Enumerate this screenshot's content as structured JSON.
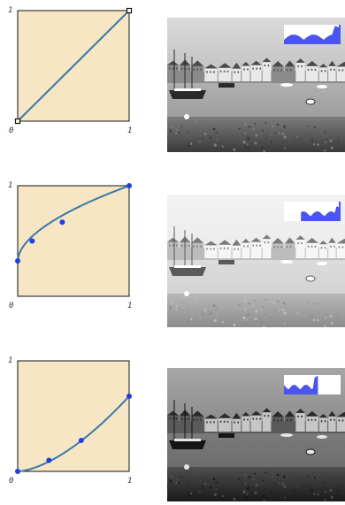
{
  "colors": {
    "plot_bg": "#f7e6c4",
    "curve": "#3a78a8",
    "point": "#1f3fe0",
    "histogram": "#4a55f0"
  },
  "chart_data": [
    {
      "type": "line",
      "title": "",
      "xlim": [
        0,
        1
      ],
      "ylim": [
        0,
        1
      ],
      "tick_labels": {
        "x_min": "0",
        "x_max": "1",
        "y_max": "1"
      },
      "curve": {
        "kind": "linear"
      },
      "control_points": [
        [
          0,
          0
        ],
        [
          1,
          1
        ]
      ],
      "point_style": "square-handle",
      "image_brightness": "normal",
      "histogram_shown": true
    },
    {
      "type": "line",
      "title": "",
      "xlim": [
        0,
        1
      ],
      "ylim": [
        0,
        1
      ],
      "tick_labels": {
        "x_min": "0",
        "x_max": "1",
        "y_max": "1"
      },
      "curve": {
        "kind": "power",
        "gamma": 0.55,
        "offset": 0.32
      },
      "control_points": [
        [
          0,
          0.32
        ],
        [
          0.13,
          0.5
        ],
        [
          0.4,
          0.67
        ],
        [
          1,
          1
        ]
      ],
      "point_style": "dot",
      "image_brightness": "bright",
      "histogram_shown": true
    },
    {
      "type": "line",
      "title": "",
      "xlim": [
        0,
        1
      ],
      "ylim": [
        0,
        1
      ],
      "tick_labels": {
        "x_min": "0",
        "x_max": "1",
        "y_max": "1"
      },
      "curve": {
        "kind": "power",
        "gamma": 1.6,
        "scale": 0.68
      },
      "control_points": [
        [
          0,
          0
        ],
        [
          0.28,
          0.1
        ],
        [
          0.57,
          0.28
        ],
        [
          1,
          0.68
        ]
      ],
      "point_style": "dot",
      "image_brightness": "dark",
      "histogram_shown": true
    }
  ]
}
